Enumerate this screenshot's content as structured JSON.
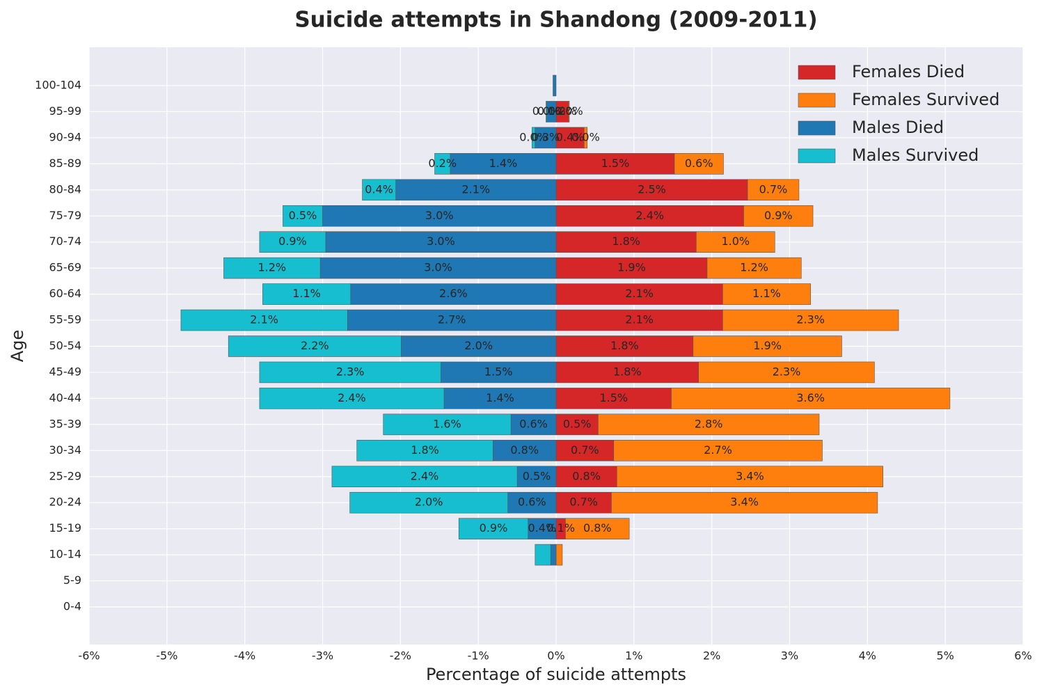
{
  "chart_data": {
    "type": "bar",
    "orientation": "horizontal",
    "stacked": true,
    "title": "Suicide attempts in Shandong (2009-2011)",
    "x_label": "Percentage of suicide attempts",
    "y_label": "Age",
    "categories": [
      "0-4",
      "5-9",
      "10-14",
      "15-19",
      "20-24",
      "25-29",
      "30-34",
      "35-39",
      "40-44",
      "45-49",
      "50-54",
      "55-59",
      "60-64",
      "65-69",
      "70-74",
      "75-79",
      "80-84",
      "85-89",
      "90-94",
      "95-99",
      "100-104"
    ],
    "series": [
      {
        "name": "Females Died",
        "color": "#d62728",
        "values": [
          0,
          0,
          0,
          0.12,
          0.71,
          0.78,
          0.74,
          0.54,
          1.48,
          1.83,
          1.76,
          2.14,
          2.14,
          1.94,
          1.8,
          2.41,
          2.46,
          1.52,
          0.36,
          0.16,
          0
        ],
        "value_labels": [
          null,
          null,
          null,
          "0.1%",
          "0.7%",
          "0.8%",
          "0.7%",
          "0.5%",
          "1.5%",
          "1.8%",
          "1.8%",
          "2.1%",
          "2.1%",
          "1.9%",
          "1.8%",
          "2.4%",
          "2.5%",
          "1.5%",
          "0.4%",
          "0.2%",
          null
        ]
      },
      {
        "name": "Females Survived",
        "color": "#ff7f0e",
        "values": [
          0,
          0,
          0.08,
          0.82,
          3.42,
          3.42,
          2.68,
          2.84,
          3.58,
          2.26,
          1.91,
          2.26,
          1.13,
          1.21,
          1.01,
          0.89,
          0.66,
          0.63,
          0.04,
          0.01,
          0
        ],
        "value_labels": [
          null,
          null,
          null,
          "0.8%",
          "3.4%",
          "3.4%",
          "2.7%",
          "2.8%",
          "3.6%",
          "2.3%",
          "1.9%",
          "2.3%",
          "1.1%",
          "1.2%",
          "1.0%",
          "0.9%",
          "0.7%",
          "0.6%",
          "0.0%",
          "0.0%",
          null
        ]
      },
      {
        "name": "Males Died",
        "color": "#1f77b4",
        "values": [
          0,
          0,
          -0.07,
          -0.36,
          -0.62,
          -0.5,
          -0.81,
          -0.58,
          -1.44,
          -1.48,
          -1.99,
          -2.68,
          -2.64,
          -3.03,
          -2.96,
          -3.0,
          -2.06,
          -1.36,
          -0.27,
          -0.12,
          -0.04
        ],
        "value_labels": [
          null,
          null,
          null,
          "0.4%",
          "0.6%",
          "0.5%",
          "0.8%",
          "0.6%",
          "1.4%",
          "1.5%",
          "2.0%",
          "2.7%",
          "2.6%",
          "3.0%",
          "3.0%",
          "3.0%",
          "2.1%",
          "1.4%",
          "0.3%",
          "0.1%",
          null
        ]
      },
      {
        "name": "Males Survived",
        "color": "#17becf",
        "values": [
          0,
          0,
          -0.2,
          -0.89,
          -2.03,
          -2.38,
          -1.75,
          -1.64,
          -2.37,
          -2.33,
          -2.22,
          -2.14,
          -1.13,
          -1.24,
          -0.85,
          -0.51,
          -0.43,
          -0.2,
          -0.04,
          -0.01,
          0
        ],
        "value_labels": [
          null,
          null,
          null,
          "0.9%",
          "2.0%",
          "2.4%",
          "1.8%",
          "1.6%",
          "2.4%",
          "2.3%",
          "2.2%",
          "2.1%",
          "1.1%",
          "1.2%",
          "0.9%",
          "0.5%",
          "0.4%",
          "0.2%",
          "0.0%",
          "0.0%",
          null
        ]
      }
    ],
    "xlim": [
      -6,
      6
    ],
    "xticks": [
      {
        "value": -6,
        "label": "-6%"
      },
      {
        "value": -5,
        "label": "-5%"
      },
      {
        "value": -4,
        "label": "-4%"
      },
      {
        "value": -3,
        "label": "-3%"
      },
      {
        "value": -2,
        "label": "-2%"
      },
      {
        "value": -1,
        "label": "-1%"
      },
      {
        "value": 0,
        "label": "0%"
      },
      {
        "value": 1,
        "label": "1%"
      },
      {
        "value": 2,
        "label": "2%"
      },
      {
        "value": 3,
        "label": "3%"
      },
      {
        "value": 4,
        "label": "4%"
      },
      {
        "value": 5,
        "label": "5%"
      },
      {
        "value": 6,
        "label": "6%"
      }
    ],
    "grid": true,
    "legend": "upper right"
  }
}
